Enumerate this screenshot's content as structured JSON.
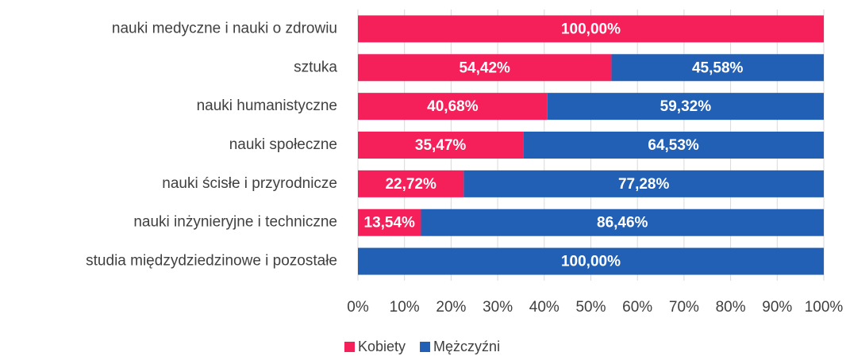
{
  "chart_data": {
    "type": "stacked-bar-horizontal",
    "categories": [
      "nauki medyczne i nauki o zdrowiu",
      "sztuka",
      "nauki humanistyczne",
      "nauki społeczne",
      "nauki ścisłe i przyrodnicze",
      "nauki inżynieryjne i techniczne",
      "studia międzydziedzinowe i pozostałe"
    ],
    "series": [
      {
        "name": "Kobiety",
        "color": "#f51f5a",
        "values": [
          100,
          54.42,
          40.68,
          35.47,
          22.72,
          13.54,
          0
        ],
        "value_labels": [
          "100,00%",
          "54,42%",
          "40,68%",
          "35,47%",
          "22,72%",
          "13,54%",
          null
        ]
      },
      {
        "name": "Mężczyźni",
        "color": "#2160b4",
        "values": [
          0,
          45.58,
          59.32,
          64.53,
          77.28,
          86.46,
          100
        ],
        "value_labels": [
          null,
          "45,58%",
          "59,32%",
          "64,53%",
          "77,28%",
          "86,46%",
          "100,00%"
        ]
      }
    ],
    "xlim": [
      0,
      100
    ],
    "xticks": [
      {
        "value": 0,
        "label": "0%"
      },
      {
        "value": 10,
        "label": "10%"
      },
      {
        "value": 20,
        "label": "20%"
      },
      {
        "value": 30,
        "label": "30%"
      },
      {
        "value": 40,
        "label": "40%"
      },
      {
        "value": 50,
        "label": "50%"
      },
      {
        "value": 60,
        "label": "60%"
      },
      {
        "value": 70,
        "label": "70%"
      },
      {
        "value": 80,
        "label": "80%"
      },
      {
        "value": 90,
        "label": "90%"
      },
      {
        "value": 100,
        "label": "100%"
      }
    ],
    "grid": true,
    "legend": "bottom"
  }
}
